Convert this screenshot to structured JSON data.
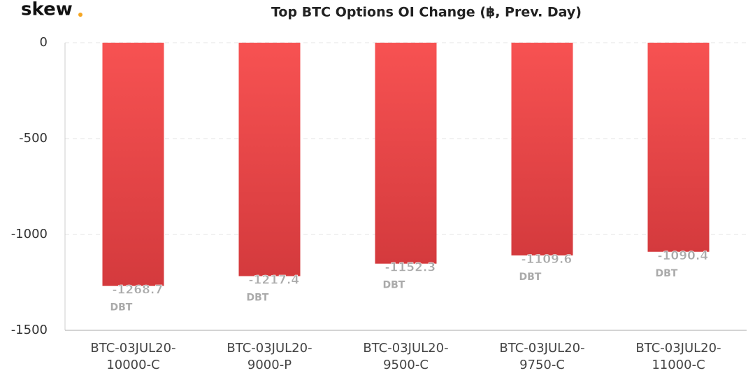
{
  "brand": "skew",
  "chart_data": {
    "type": "bar",
    "title": "Top BTC Options OI Change (฿, Prev. Day)",
    "categories": [
      "BTC-03JUL20-10000-C",
      "BTC-03JUL20-9000-P",
      "BTC-03JUL20-9500-C",
      "BTC-03JUL20-9750-C",
      "BTC-03JUL20-11000-C"
    ],
    "values": [
      -1268.7,
      -1217.4,
      -1152.3,
      -1109.6,
      -1090.4
    ],
    "value_unit": "DBT",
    "color": "#e84646",
    "ylim": [
      -1500,
      0
    ],
    "yticks": [
      0,
      -500,
      -1000,
      -1500
    ],
    "grid": true
  }
}
